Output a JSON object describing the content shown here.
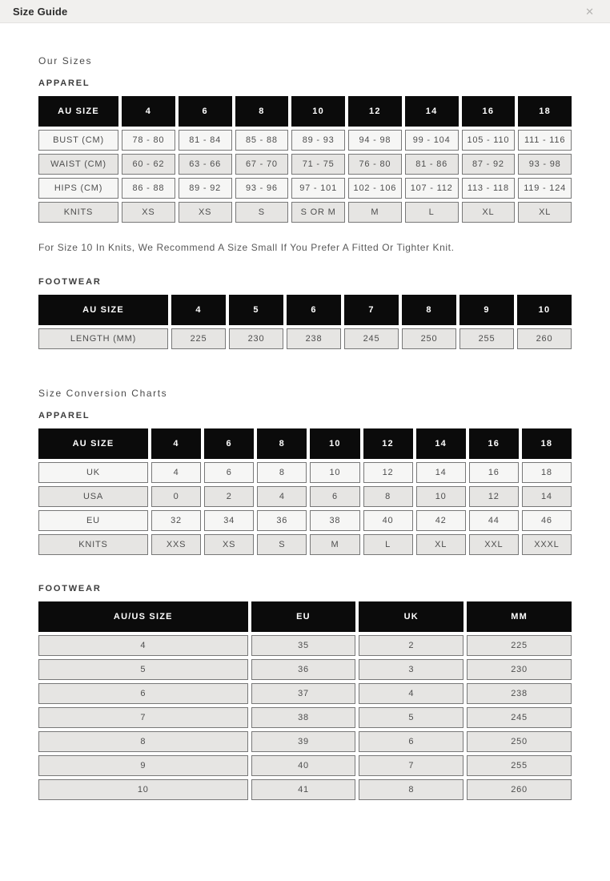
{
  "modal": {
    "title": "Size Guide",
    "close_icon": "✕"
  },
  "sections": {
    "our_sizes_heading": "Our Sizes",
    "apparel_label": "APPAREL",
    "footwear_label": "FOOTWEAR",
    "knits_note": "For Size 10 In Knits, We Recommend A Size Small If You Prefer A Fitted Or Tighter Knit.",
    "conversion_heading": "Size Conversion Charts"
  },
  "colors": {
    "topbar_bg": "#f1f0ee",
    "header_cell_bg": "#0b0b0b",
    "header_cell_text": "#ffffff",
    "row_light": "#f6f6f5",
    "row_dark": "#e6e5e3",
    "cell_border": "#787878"
  },
  "tables": [
    {
      "id": "apparel-sizes",
      "header": [
        "AU SIZE",
        "4",
        "6",
        "8",
        "10",
        "12",
        "14",
        "16",
        "18"
      ],
      "rows": [
        [
          "BUST (CM)",
          "78 - 80",
          "81 - 84",
          "85 - 88",
          "89 - 93",
          "94 - 98",
          "99 - 104",
          "105 - 110",
          "111 - 116"
        ],
        [
          "WAIST (CM)",
          "60 - 62",
          "63 - 66",
          "67 - 70",
          "71 - 75",
          "76 - 80",
          "81 - 86",
          "87 - 92",
          "93 - 98"
        ],
        [
          "HIPS (CM)",
          "86 - 88",
          "89 - 92",
          "93 - 96",
          "97 - 101",
          "102 - 106",
          "107 - 112",
          "113 - 118",
          "119 - 124"
        ],
        [
          "KNITS",
          "XS",
          "XS",
          "S",
          "S OR M",
          "M",
          "L",
          "XL",
          "XL"
        ]
      ]
    },
    {
      "id": "footwear-sizes",
      "header": [
        "AU SIZE",
        "4",
        "5",
        "6",
        "7",
        "8",
        "9",
        "10"
      ],
      "rows": [
        [
          "LENGTH (MM)",
          "225",
          "230",
          "238",
          "245",
          "250",
          "255",
          "260"
        ]
      ]
    },
    {
      "id": "apparel-conversion",
      "header": [
        "AU SIZE",
        "4",
        "6",
        "8",
        "10",
        "12",
        "14",
        "16",
        "18"
      ],
      "rows": [
        [
          "UK",
          "4",
          "6",
          "8",
          "10",
          "12",
          "14",
          "16",
          "18"
        ],
        [
          "USA",
          "0",
          "2",
          "4",
          "6",
          "8",
          "10",
          "12",
          "14"
        ],
        [
          "EU",
          "32",
          "34",
          "36",
          "38",
          "40",
          "42",
          "44",
          "46"
        ],
        [
          "KNITS",
          "XXS",
          "XS",
          "S",
          "M",
          "L",
          "XL",
          "XXL",
          "XXXL"
        ]
      ]
    },
    {
      "id": "footwear-conversion",
      "header": [
        "AU/US SIZE",
        "EU",
        "UK",
        "MM"
      ],
      "rows": [
        [
          "4",
          "35",
          "2",
          "225"
        ],
        [
          "5",
          "36",
          "3",
          "230"
        ],
        [
          "6",
          "37",
          "4",
          "238"
        ],
        [
          "7",
          "38",
          "5",
          "245"
        ],
        [
          "8",
          "39",
          "6",
          "250"
        ],
        [
          "9",
          "40",
          "7",
          "255"
        ],
        [
          "10",
          "41",
          "8",
          "260"
        ]
      ]
    }
  ]
}
